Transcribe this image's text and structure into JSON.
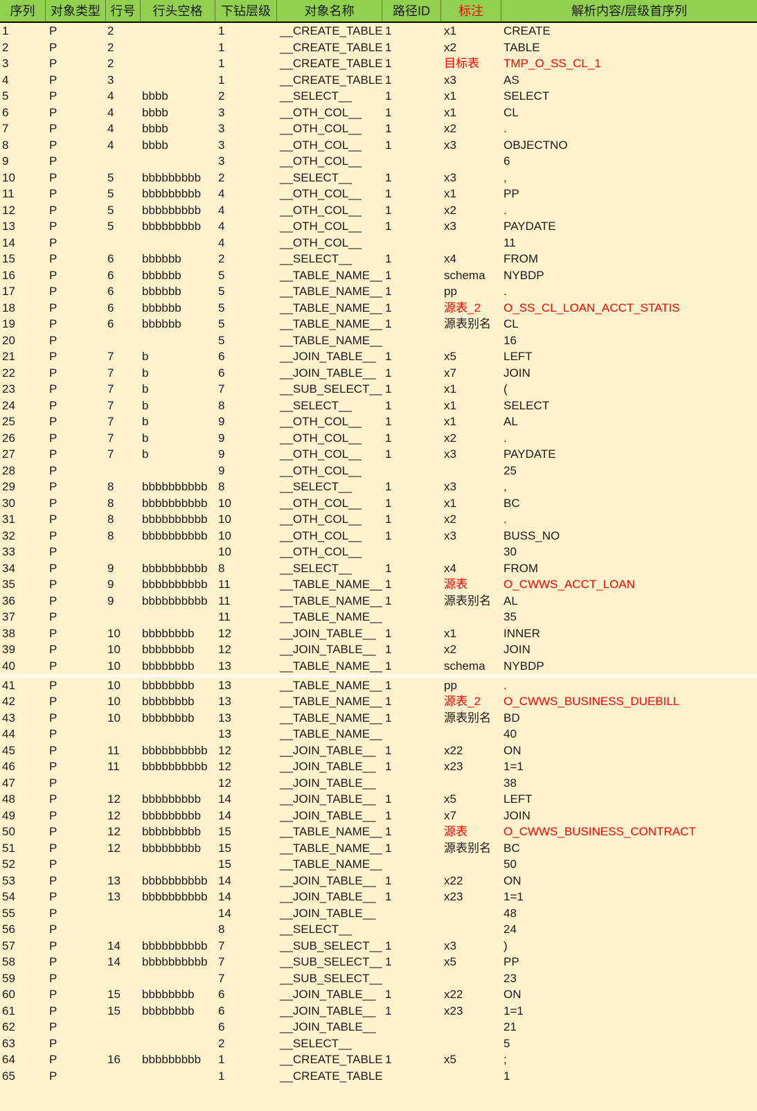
{
  "colors": {
    "header_bg": "#92d050",
    "body_bg": "#fff2cc",
    "highlight": "#ff0000"
  },
  "headers": [
    "序列",
    "对象类型",
    "行号",
    "行头空格",
    "下钻层级",
    "对象名称",
    "路径ID",
    "标注",
    "解析内容/层级首序列"
  ],
  "highlighted_header_index": 7,
  "rows": [
    [
      "1",
      "P",
      "2",
      "",
      "1",
      "__CREATE_TABLE_",
      "1",
      "x1",
      "CREATE",
      false
    ],
    [
      "2",
      "P",
      "2",
      "",
      "1",
      "__CREATE_TABLE_",
      "1",
      "x2",
      "TABLE",
      false
    ],
    [
      "3",
      "P",
      "2",
      "",
      "1",
      "__CREATE_TABLE_",
      "1",
      "目标表",
      "TMP_O_SS_CL_1",
      true
    ],
    [
      "4",
      "P",
      "3",
      "",
      "1",
      "__CREATE_TABLE_",
      "1",
      "x3",
      "AS",
      false
    ],
    [
      "5",
      "P",
      "4",
      "bbbb",
      "2",
      "__SELECT__",
      "1",
      "x1",
      "SELECT",
      false
    ],
    [
      "6",
      "P",
      "4",
      "bbbb",
      "3",
      "__OTH_COL__",
      "1",
      "x1",
      "CL",
      false
    ],
    [
      "7",
      "P",
      "4",
      "bbbb",
      "3",
      "__OTH_COL__",
      "1",
      "x2",
      ".",
      false
    ],
    [
      "8",
      "P",
      "4",
      "bbbb",
      "3",
      "__OTH_COL__",
      "1",
      "x3",
      "OBJECTNO",
      false
    ],
    [
      "9",
      "P",
      "",
      "",
      "3",
      "__OTH_COL__",
      "",
      "",
      "6",
      false
    ],
    [
      "10",
      "P",
      "5",
      "bbbbbbbbb",
      "2",
      "__SELECT__",
      "1",
      "x3",
      ",",
      false
    ],
    [
      "11",
      "P",
      "5",
      "bbbbbbbbb",
      "4",
      "__OTH_COL__",
      "1",
      "x1",
      "PP",
      false
    ],
    [
      "12",
      "P",
      "5",
      "bbbbbbbbb",
      "4",
      "__OTH_COL__",
      "1",
      "x2",
      ".",
      false
    ],
    [
      "13",
      "P",
      "5",
      "bbbbbbbbb",
      "4",
      "__OTH_COL__",
      "1",
      "x3",
      "PAYDATE",
      false
    ],
    [
      "14",
      "P",
      "",
      "",
      "4",
      "__OTH_COL__",
      "",
      "",
      "11",
      false
    ],
    [
      "15",
      "P",
      "6",
      "bbbbbb",
      "2",
      "__SELECT__",
      "1",
      "x4",
      "FROM",
      false
    ],
    [
      "16",
      "P",
      "6",
      "bbbbbb",
      "5",
      "__TABLE_NAME__",
      "1",
      "schema",
      "NYBDP",
      false
    ],
    [
      "17",
      "P",
      "6",
      "bbbbbb",
      "5",
      "__TABLE_NAME__",
      "1",
      "pp",
      ".",
      false
    ],
    [
      "18",
      "P",
      "6",
      "bbbbbb",
      "5",
      "__TABLE_NAME__",
      "1",
      "源表_2",
      "O_SS_CL_LOAN_ACCT_STATIS",
      true
    ],
    [
      "19",
      "P",
      "6",
      "bbbbbb",
      "5",
      "__TABLE_NAME__",
      "1",
      "源表别名",
      "CL",
      false
    ],
    [
      "20",
      "P",
      "",
      "",
      "5",
      "__TABLE_NAME__",
      "",
      "",
      "16",
      false
    ],
    [
      "21",
      "P",
      "7",
      "b",
      "6",
      "__JOIN_TABLE__",
      "1",
      "x5",
      "LEFT",
      false
    ],
    [
      "22",
      "P",
      "7",
      "b",
      "6",
      "__JOIN_TABLE__",
      "1",
      "x7",
      "JOIN",
      false
    ],
    [
      "23",
      "P",
      "7",
      "b",
      "7",
      "__SUB_SELECT__",
      "1",
      "x1",
      "(",
      false
    ],
    [
      "24",
      "P",
      "7",
      "b",
      "8",
      "__SELECT__",
      "1",
      "x1",
      "SELECT",
      false
    ],
    [
      "25",
      "P",
      "7",
      "b",
      "9",
      "__OTH_COL__",
      "1",
      "x1",
      "AL",
      false
    ],
    [
      "26",
      "P",
      "7",
      "b",
      "9",
      "__OTH_COL__",
      "1",
      "x2",
      ".",
      false
    ],
    [
      "27",
      "P",
      "7",
      "b",
      "9",
      "__OTH_COL__",
      "1",
      "x3",
      "PAYDATE",
      false
    ],
    [
      "28",
      "P",
      "",
      "",
      "9",
      "__OTH_COL__",
      "",
      "",
      "25",
      false
    ],
    [
      "29",
      "P",
      "8",
      "bbbbbbbbbb",
      "8",
      "__SELECT__",
      "1",
      "x3",
      ",",
      false
    ],
    [
      "30",
      "P",
      "8",
      "bbbbbbbbbb",
      "10",
      "__OTH_COL__",
      "1",
      "x1",
      "BC",
      false
    ],
    [
      "31",
      "P",
      "8",
      "bbbbbbbbbb",
      "10",
      "__OTH_COL__",
      "1",
      "x2",
      ".",
      false
    ],
    [
      "32",
      "P",
      "8",
      "bbbbbbbbbb",
      "10",
      "__OTH_COL__",
      "1",
      "x3",
      "BUSS_NO",
      false
    ],
    [
      "33",
      "P",
      "",
      "",
      "10",
      "__OTH_COL__",
      "",
      "",
      "30",
      false
    ],
    [
      "34",
      "P",
      "9",
      "bbbbbbbbbb",
      "8",
      "__SELECT__",
      "1",
      "x4",
      "FROM",
      false
    ],
    [
      "35",
      "P",
      "9",
      "bbbbbbbbbb",
      "11",
      "__TABLE_NAME__",
      "1",
      "源表",
      "O_CWWS_ACCT_LOAN",
      true
    ],
    [
      "36",
      "P",
      "9",
      "bbbbbbbbbb",
      "11",
      "__TABLE_NAME__",
      "1",
      "源表别名",
      "AL",
      false
    ],
    [
      "37",
      "P",
      "",
      "",
      "11",
      "__TABLE_NAME__",
      "",
      "",
      "35",
      false
    ],
    [
      "38",
      "P",
      "10",
      "bbbbbbbb",
      "12",
      "__JOIN_TABLE__",
      "1",
      "x1",
      "INNER",
      false
    ],
    [
      "39",
      "P",
      "10",
      "bbbbbbbb",
      "12",
      "__JOIN_TABLE__",
      "1",
      "x2",
      "JOIN",
      false
    ],
    [
      "40",
      "P",
      "10",
      "bbbbbbbb",
      "13",
      "__TABLE_NAME__",
      "1",
      "schema",
      "NYBDP",
      false
    ],
    [
      "41",
      "P",
      "10",
      "bbbbbbbb",
      "13",
      "__TABLE_NAME__",
      "1",
      "pp",
      ".",
      false
    ],
    [
      "42",
      "P",
      "10",
      "bbbbbbbb",
      "13",
      "__TABLE_NAME__",
      "1",
      "源表_2",
      "O_CWWS_BUSINESS_DUEBILL",
      true
    ],
    [
      "43",
      "P",
      "10",
      "bbbbbbbb",
      "13",
      "__TABLE_NAME__",
      "1",
      "源表别名",
      "BD",
      false
    ],
    [
      "44",
      "P",
      "",
      "",
      "13",
      "__TABLE_NAME__",
      "",
      "",
      "40",
      false
    ],
    [
      "45",
      "P",
      "11",
      "bbbbbbbbbb",
      "12",
      "__JOIN_TABLE__",
      "1",
      "x22",
      "ON",
      false
    ],
    [
      "46",
      "P",
      "11",
      "bbbbbbbbbb",
      "12",
      "__JOIN_TABLE__",
      "1",
      "x23",
      "1=1",
      false
    ],
    [
      "47",
      "P",
      "",
      "",
      "12",
      "__JOIN_TABLE__",
      "",
      "",
      "38",
      false
    ],
    [
      "48",
      "P",
      "12",
      "bbbbbbbbb",
      "14",
      "__JOIN_TABLE__",
      "1",
      "x5",
      "LEFT",
      false
    ],
    [
      "49",
      "P",
      "12",
      "bbbbbbbbb",
      "14",
      "__JOIN_TABLE__",
      "1",
      "x7",
      "JOIN",
      false
    ],
    [
      "50",
      "P",
      "12",
      "bbbbbbbbb",
      "15",
      "__TABLE_NAME__",
      "1",
      "源表",
      "O_CWWS_BUSINESS_CONTRACT",
      true
    ],
    [
      "51",
      "P",
      "12",
      "bbbbbbbbb",
      "15",
      "__TABLE_NAME__",
      "1",
      "源表别名",
      "BC",
      false
    ],
    [
      "52",
      "P",
      "",
      "",
      "15",
      "__TABLE_NAME__",
      "",
      "",
      "50",
      false
    ],
    [
      "53",
      "P",
      "13",
      "bbbbbbbbbb",
      "14",
      "__JOIN_TABLE__",
      "1",
      "x22",
      "ON",
      false
    ],
    [
      "54",
      "P",
      "13",
      "bbbbbbbbbb",
      "14",
      "__JOIN_TABLE__",
      "1",
      "x23",
      "1=1",
      false
    ],
    [
      "55",
      "P",
      "",
      "",
      "14",
      "__JOIN_TABLE__",
      "",
      "",
      "48",
      false
    ],
    [
      "56",
      "P",
      "",
      "",
      "8",
      "__SELECT__",
      "",
      "",
      "24",
      false
    ],
    [
      "57",
      "P",
      "14",
      "bbbbbbbbbb",
      "7",
      "__SUB_SELECT__",
      "1",
      "x3",
      ")",
      false
    ],
    [
      "58",
      "P",
      "14",
      "bbbbbbbbbb",
      "7",
      "__SUB_SELECT__",
      "1",
      "x5",
      "PP",
      false
    ],
    [
      "59",
      "P",
      "",
      "",
      "7",
      "__SUB_SELECT__",
      "",
      "",
      "23",
      false
    ],
    [
      "60",
      "P",
      "15",
      "bbbbbbbb",
      "6",
      "__JOIN_TABLE__",
      "1",
      "x22",
      "ON",
      false
    ],
    [
      "61",
      "P",
      "15",
      "bbbbbbbb",
      "6",
      "__JOIN_TABLE__",
      "1",
      "x23",
      "1=1",
      false
    ],
    [
      "62",
      "P",
      "",
      "",
      "6",
      "__JOIN_TABLE__",
      "",
      "",
      "21",
      false
    ],
    [
      "63",
      "P",
      "",
      "",
      "2",
      "__SELECT__",
      "",
      "",
      "5",
      false
    ],
    [
      "64",
      "P",
      "16",
      "bbbbbbbbb",
      "1",
      "__CREATE_TABLE_",
      "1",
      "x5",
      ";",
      false
    ],
    [
      "65",
      "P",
      "",
      "",
      "1",
      "__CREATE_TABLE_SELECT__",
      "",
      "",
      "1",
      false
    ]
  ]
}
